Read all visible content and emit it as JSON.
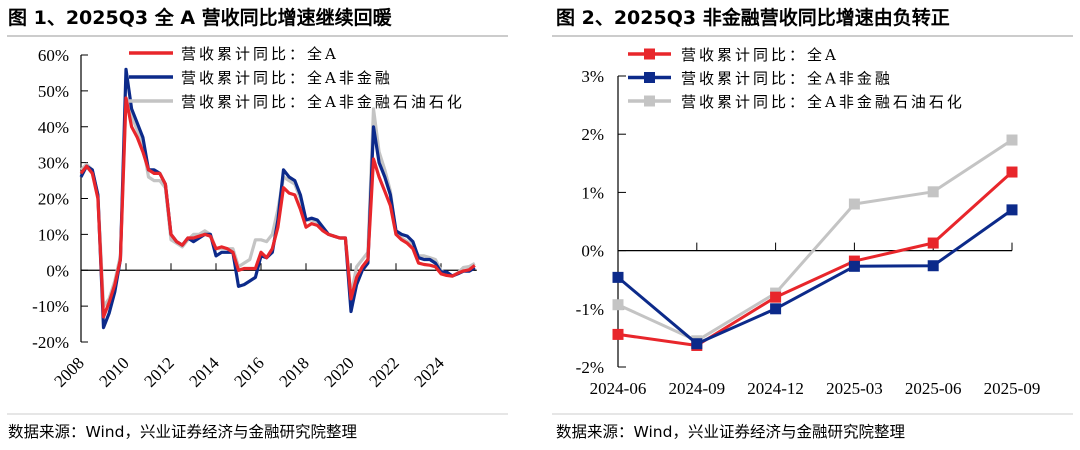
{
  "colors": {
    "all_a": "#e8262b",
    "non_financial": "#0c2a8a",
    "non_fin_ex_petro": "#c4c4c4"
  },
  "chart_data": [
    {
      "type": "line",
      "title": "图 1、2025Q3 全 A 营收同比增速继续回暖",
      "source": "数据来源：Wind，兴业证券经济与金融研究院整理",
      "x_start": "2008Q1",
      "x_end": "2025Q3",
      "x_frequency": "quarterly",
      "x_tick_labels": [
        "2008",
        "2010",
        "2012",
        "2014",
        "2016",
        "2018",
        "2020",
        "2022",
        "2024"
      ],
      "y_tick_labels": [
        "60%",
        "50%",
        "40%",
        "30%",
        "20%",
        "10%",
        "0%",
        "-10%",
        "-20%"
      ],
      "ylim": [
        -20,
        60
      ],
      "y_unit": "%",
      "grid": false,
      "legend_position": "top",
      "series": [
        {
          "name": "营收累计同比：全A",
          "color": "#e8262b",
          "values": [
            27,
            29,
            27,
            20,
            -13,
            -9,
            -4,
            3,
            48,
            40,
            37,
            33,
            28,
            27,
            27,
            24,
            10,
            8,
            7,
            9,
            9,
            9.5,
            10,
            9.5,
            6,
            6.5,
            6,
            5,
            0,
            0.5,
            0.5,
            0.5,
            5,
            3.5,
            6,
            12,
            23,
            21.5,
            21,
            17,
            12,
            13,
            12.5,
            11,
            10,
            9.5,
            9,
            9,
            -8,
            -2,
            1,
            3,
            31,
            26,
            22,
            18,
            10,
            8.5,
            7.5,
            6,
            2,
            1.6,
            1.4,
            1,
            -1,
            -1.44,
            -1.63,
            -0.8,
            -0.18,
            0.13,
            1.35
          ]
        },
        {
          "name": "营收累计同比：全A非金融",
          "color": "#0c2a8a",
          "values": [
            26,
            29,
            28,
            21,
            -16,
            -12,
            -6,
            3,
            56,
            45,
            41,
            37,
            28,
            28,
            27,
            24,
            10,
            8,
            7,
            9,
            8,
            9,
            10,
            10,
            4,
            5,
            5,
            5,
            -4.5,
            -4,
            -3,
            -2,
            4,
            3.5,
            5,
            14,
            28,
            26,
            25,
            21,
            14,
            14.5,
            14,
            12,
            10,
            9.5,
            9,
            9,
            -11.5,
            -4,
            0,
            2,
            40,
            30,
            26,
            21,
            11,
            10,
            9.5,
            8,
            3.5,
            3,
            3,
            2,
            -0.5,
            -0.46,
            -1.6,
            -1.0,
            -0.27,
            -0.26,
            0.7
          ]
        },
        {
          "name": "营收累计同比：全A非金融石油石化",
          "color": "#c4c4c4",
          "values": [
            28,
            29.5,
            28,
            21,
            -10,
            -8,
            -3,
            4,
            48,
            43,
            39,
            35,
            26,
            25,
            25,
            23,
            8.5,
            7.5,
            6.5,
            8.5,
            10,
            10,
            11,
            10,
            6,
            6,
            6,
            6,
            1,
            2,
            3,
            8.5,
            8.5,
            8,
            10,
            17,
            26,
            25,
            24,
            20,
            14,
            14,
            13.5,
            11,
            10,
            9.5,
            9,
            9,
            -7,
            1,
            3,
            5,
            45,
            33,
            28,
            22,
            10,
            9,
            8,
            7,
            4,
            4,
            3.5,
            3,
            0,
            -0.93,
            -1.55,
            -0.73,
            0.8,
            1.01,
            1.9
          ]
        }
      ]
    },
    {
      "type": "line",
      "title": "图 2、2025Q3 非金融营收同比增速由负转正",
      "source": "数据来源：Wind，兴业证券经济与金融研究院整理",
      "categories": [
        "2024-06",
        "2024-09",
        "2024-12",
        "2025-03",
        "2025-06",
        "2025-09"
      ],
      "y_tick_labels": [
        "3%",
        "2%",
        "1%",
        "0%",
        "-1%",
        "-2%"
      ],
      "ylim": [
        -2,
        3
      ],
      "y_unit": "%",
      "grid": false,
      "markers": "square",
      "legend_position": "top",
      "series": [
        {
          "name": "营收累计同比：全A",
          "color": "#e8262b",
          "values": [
            -1.44,
            -1.63,
            -0.8,
            -0.18,
            0.13,
            1.35
          ]
        },
        {
          "name": "营收累计同比：全A非金融",
          "color": "#0c2a8a",
          "values": [
            -0.46,
            -1.6,
            -1.0,
            -0.27,
            -0.26,
            0.7
          ]
        },
        {
          "name": "营收累计同比：全A非金融石油石化",
          "color": "#c4c4c4",
          "values": [
            -0.93,
            -1.55,
            -0.73,
            0.8,
            1.01,
            1.9
          ]
        }
      ]
    }
  ]
}
